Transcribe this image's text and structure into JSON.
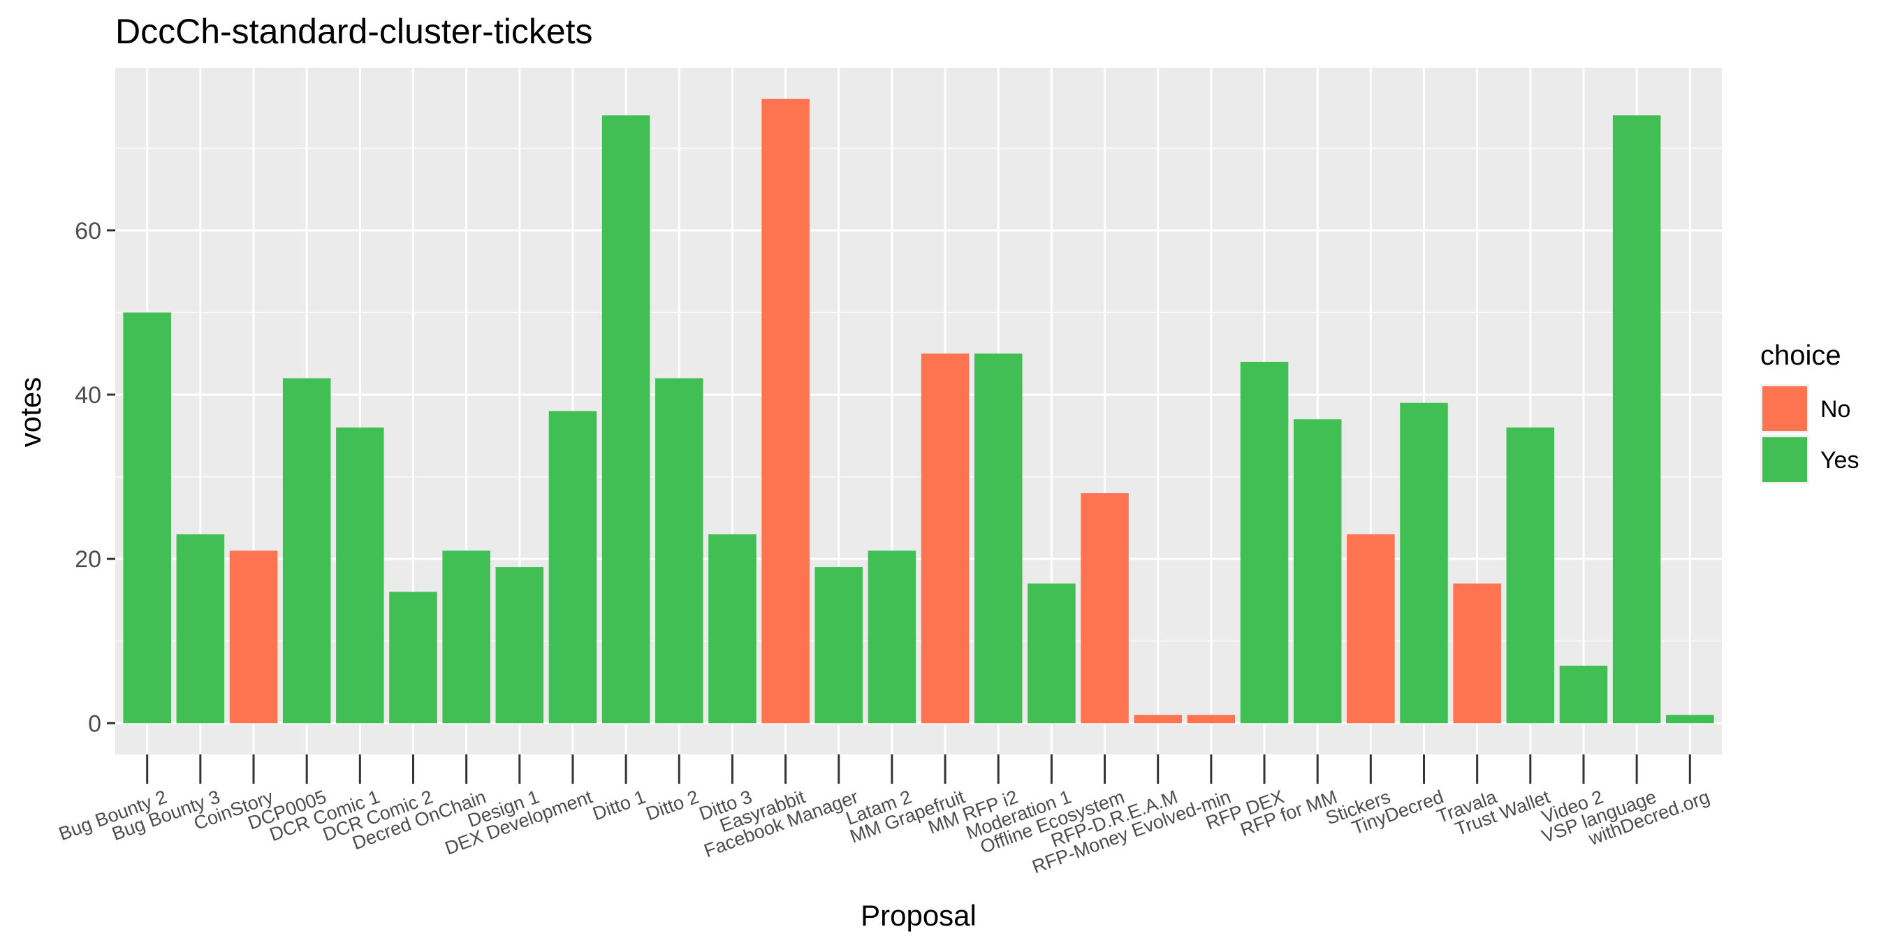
{
  "chart_data": {
    "type": "bar",
    "title": "DccCh-standard-cluster-tickets",
    "xlabel": "Proposal",
    "ylabel": "votes",
    "ylim": [
      -3.8,
      79.8
    ],
    "yticks": [
      0,
      20,
      40,
      60
    ],
    "grid": true,
    "legend": {
      "title": "choice",
      "placement": "right",
      "entries": [
        {
          "name": "No",
          "color": "#FF7450"
        },
        {
          "name": "Yes",
          "color": "#41BF54"
        }
      ]
    },
    "categories": [
      "Bug Bounty 2",
      "Bug Bounty 3",
      "CoinStory",
      "DCP0005",
      "DCR Comic 1",
      "DCR Comic 2",
      "Decred OnChain",
      "Design 1",
      "DEX Development",
      "Ditto 1",
      "Ditto 2",
      "Ditto 3",
      "Easyrabbit",
      "Facebook Manager",
      "Latam 2",
      "MM Grapefruit",
      "MM RFP i2",
      "Moderation 1",
      "Offline Ecosystem",
      "RFP-D.R.E.A.M",
      "RFP-Money Evolved-min",
      "RFP DEX",
      "RFP for MM",
      "Stickers",
      "TinyDecred",
      "Travala",
      "Trust Wallet",
      "Video 2",
      "VSP language",
      "withDecred.org"
    ],
    "values": [
      50,
      23,
      21,
      42,
      36,
      16,
      21,
      19,
      38,
      74,
      42,
      23,
      76,
      19,
      21,
      45,
      45,
      17,
      28,
      1,
      1,
      44,
      37,
      23,
      39,
      17,
      36,
      7,
      74,
      1
    ],
    "choice": [
      "Yes",
      "Yes",
      "No",
      "Yes",
      "Yes",
      "Yes",
      "Yes",
      "Yes",
      "Yes",
      "Yes",
      "Yes",
      "Yes",
      "No",
      "Yes",
      "Yes",
      "No",
      "Yes",
      "Yes",
      "No",
      "No",
      "No",
      "Yes",
      "Yes",
      "No",
      "Yes",
      "No",
      "Yes",
      "Yes",
      "Yes",
      "Yes"
    ]
  }
}
